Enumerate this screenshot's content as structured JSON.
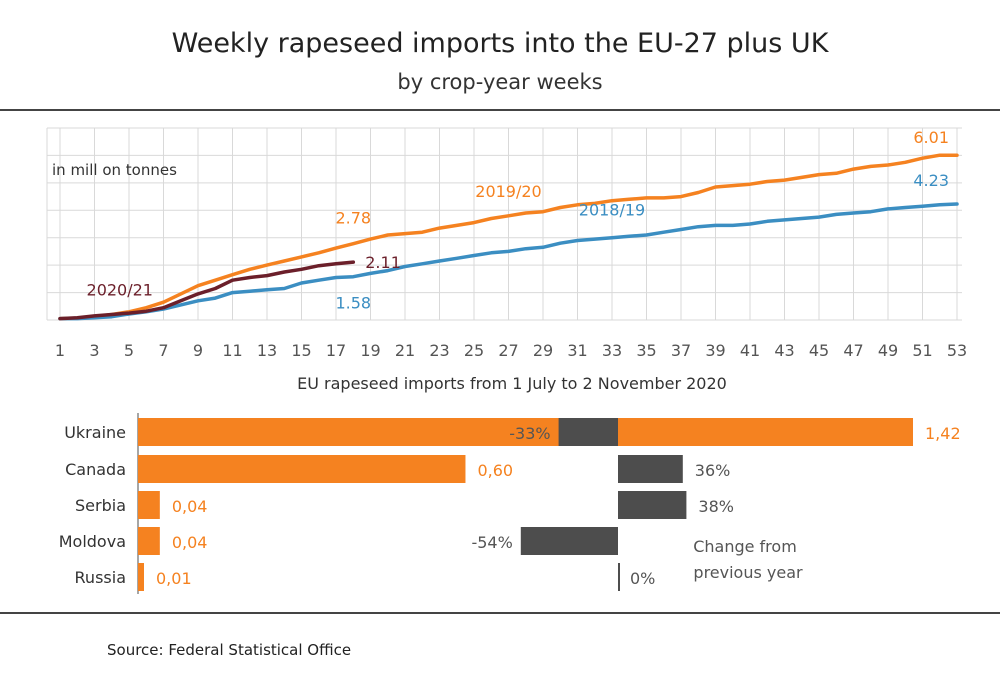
{
  "header": {
    "title": "Weekly rapeseed imports into the EU-27 plus UK",
    "subtitle": "by crop-year weeks"
  },
  "source": "Source:  Federal Statistical Office",
  "colors": {
    "y2019_20": "#f58220",
    "y2018_19": "#3b8ec2",
    "y2020_21": "#6b1f2a",
    "bar_import": "#f58220",
    "bar_change": "#4d4d4d",
    "grid": "#d9d9d9"
  },
  "chart_data": [
    {
      "type": "line",
      "ylabel": "in mill on tonnes",
      "xlabel": "",
      "x_ticks": [
        "1",
        "3",
        "5",
        "7",
        "9",
        "11",
        "13",
        "15",
        "17",
        "19",
        "21",
        "23",
        "25",
        "27",
        "29",
        "31",
        "33",
        "35",
        "37",
        "39",
        "41",
        "43",
        "45",
        "47",
        "49",
        "51",
        "53"
      ],
      "xlim": [
        1,
        53
      ],
      "ylim": [
        0,
        7
      ],
      "y_gridlines": [
        0,
        1,
        2,
        3,
        4,
        5,
        6,
        7
      ],
      "grid": true,
      "series": [
        {
          "name": "2019/20",
          "color": "#f58220",
          "x": [
            1,
            2,
            3,
            4,
            5,
            6,
            7,
            8,
            9,
            10,
            11,
            12,
            13,
            14,
            15,
            16,
            17,
            18,
            19,
            20,
            21,
            22,
            23,
            24,
            25,
            26,
            27,
            28,
            29,
            30,
            31,
            32,
            33,
            34,
            35,
            36,
            37,
            38,
            39,
            40,
            41,
            42,
            43,
            44,
            45,
            46,
            47,
            48,
            49,
            50,
            51,
            52,
            53
          ],
          "values": [
            0.05,
            0.07,
            0.12,
            0.2,
            0.3,
            0.45,
            0.65,
            0.95,
            1.25,
            1.45,
            1.65,
            1.85,
            2.0,
            2.15,
            2.3,
            2.45,
            2.62,
            2.78,
            2.95,
            3.1,
            3.15,
            3.2,
            3.35,
            3.45,
            3.55,
            3.7,
            3.8,
            3.9,
            3.95,
            4.1,
            4.2,
            4.25,
            4.35,
            4.4,
            4.45,
            4.45,
            4.5,
            4.65,
            4.85,
            4.9,
            4.95,
            5.05,
            5.1,
            5.2,
            5.3,
            5.35,
            5.5,
            5.6,
            5.65,
            5.75,
            5.9,
            6.01,
            6.01
          ],
          "end_label": "6.01",
          "annotations": [
            {
              "text": "2.78",
              "at_x": 18
            },
            {
              "text": "2019/20",
              "at_x": 27
            }
          ]
        },
        {
          "name": "2018/19",
          "color": "#3b8ec2",
          "x": [
            1,
            2,
            3,
            4,
            5,
            6,
            7,
            8,
            9,
            10,
            11,
            12,
            13,
            14,
            15,
            16,
            17,
            18,
            19,
            20,
            21,
            22,
            23,
            24,
            25,
            26,
            27,
            28,
            29,
            30,
            31,
            32,
            33,
            34,
            35,
            36,
            37,
            38,
            39,
            40,
            41,
            42,
            43,
            44,
            45,
            46,
            47,
            48,
            49,
            50,
            51,
            52,
            53
          ],
          "values": [
            0.05,
            0.05,
            0.08,
            0.12,
            0.22,
            0.3,
            0.4,
            0.55,
            0.7,
            0.8,
            1.0,
            1.05,
            1.1,
            1.15,
            1.35,
            1.45,
            1.55,
            1.58,
            1.7,
            1.8,
            1.95,
            2.05,
            2.15,
            2.25,
            2.35,
            2.45,
            2.5,
            2.6,
            2.65,
            2.8,
            2.9,
            2.95,
            3.0,
            3.05,
            3.1,
            3.2,
            3.3,
            3.4,
            3.45,
            3.45,
            3.5,
            3.6,
            3.65,
            3.7,
            3.75,
            3.85,
            3.9,
            3.95,
            4.05,
            4.1,
            4.15,
            4.2,
            4.23
          ],
          "end_label": "4.23",
          "annotations": [
            {
              "text": "1.58",
              "at_x": 18
            },
            {
              "text": "2018/19",
              "at_x": 33
            }
          ]
        },
        {
          "name": "2020/21",
          "color": "#6b1f2a",
          "x": [
            1,
            2,
            3,
            4,
            5,
            6,
            7,
            8,
            9,
            10,
            11,
            12,
            13,
            14,
            15,
            16,
            17,
            18
          ],
          "values": [
            0.05,
            0.08,
            0.15,
            0.2,
            0.25,
            0.32,
            0.45,
            0.7,
            0.95,
            1.15,
            1.45,
            1.55,
            1.62,
            1.75,
            1.85,
            1.98,
            2.05,
            2.11
          ],
          "end_label": "2.11",
          "annotations": [
            {
              "text": "2020/21",
              "at_x": 4
            }
          ]
        }
      ]
    },
    {
      "type": "bar",
      "title": "EU rapeseed imports from 1 July to 2 November 2020",
      "categories": [
        "Ukraine",
        "Canada",
        "Serbia",
        "Moldova",
        "Russia"
      ],
      "series": [
        {
          "values": [
            1.42,
            0.6,
            0.04,
            0.04,
            0.01
          ],
          "value_labels": [
            "1,42",
            "0,60",
            "0,04",
            "0,04",
            "0,01"
          ],
          "color": "#f58220"
        }
      ],
      "xlim": [
        0,
        1.42
      ]
    },
    {
      "type": "bar",
      "title": "Change from previous year",
      "categories": [
        "Ukraine",
        "Canada",
        "Serbia",
        "Moldova",
        "Russia"
      ],
      "series": [
        {
          "values": [
            -33,
            36,
            38,
            -54,
            0
          ],
          "value_labels": [
            "-33%",
            "36%",
            "38%",
            "-54%",
            "0%"
          ],
          "color": "#4d4d4d"
        }
      ],
      "xlim": [
        -100,
        100
      ],
      "note_lines": [
        "Change from",
        "previous year"
      ]
    }
  ]
}
